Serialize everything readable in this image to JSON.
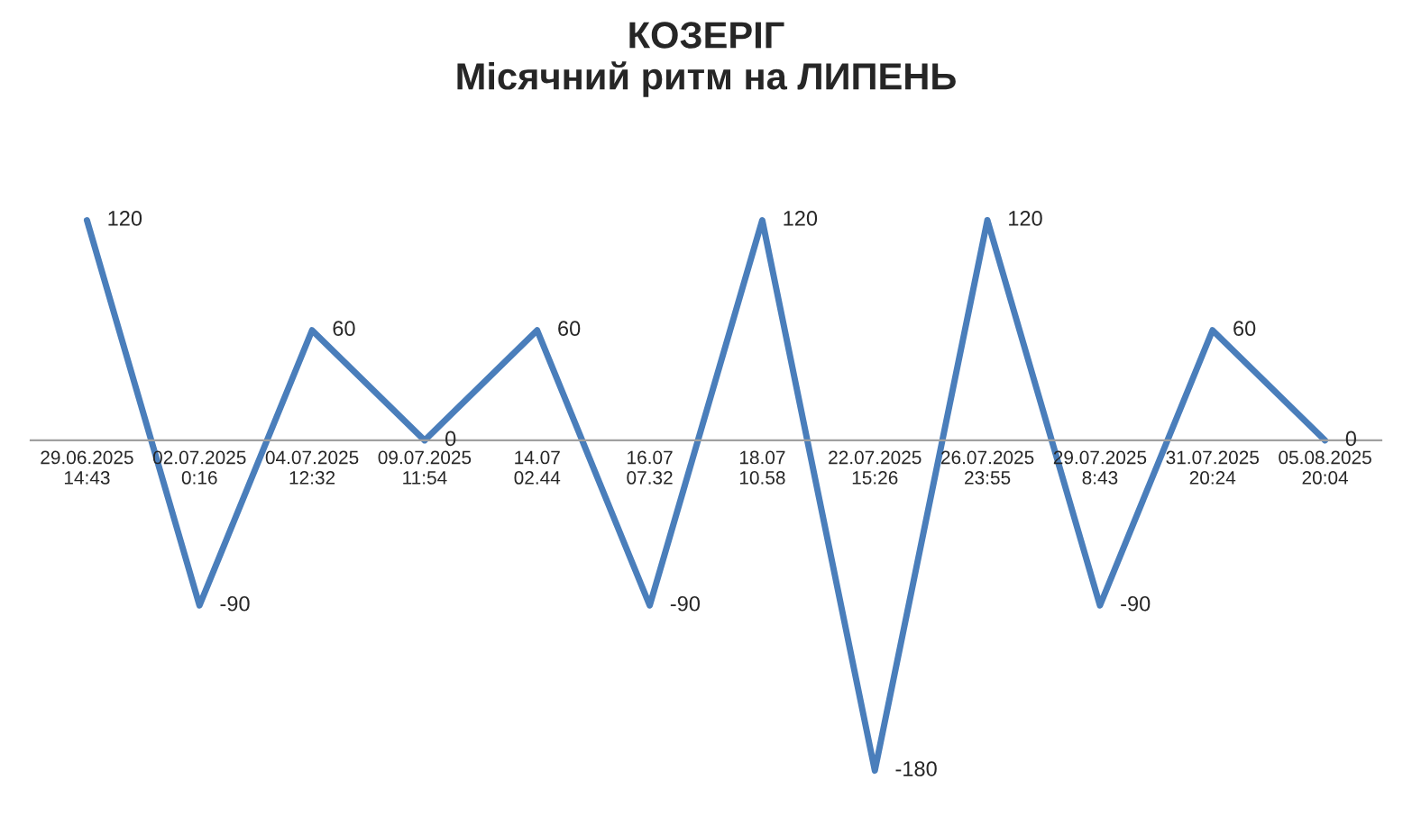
{
  "chart_data": {
    "type": "line",
    "title": "КОЗЕРІГ\nМісячний ритм на ЛИПЕНЬ",
    "categories": [
      "29.06.2025\n14:43",
      "02.07.2025\n0:16",
      "04.07.2025\n12:32",
      "09.07.2025\n11:54",
      "14.07\n02.44",
      "16.07\n07.32",
      "18.07\n10.58",
      "22.07.2025\n15:26",
      "26.07.2025\n23:55",
      "29.07.2025\n8:43",
      "31.07.2025\n20:24",
      "05.08.2025\n20:04"
    ],
    "series": [
      {
        "color": "#4a7ebb",
        "values": [
          120,
          -90,
          60,
          0,
          60,
          -90,
          120,
          -180,
          120,
          -90,
          60,
          0
        ]
      }
    ],
    "data_labels": true,
    "grid": false,
    "marker": "none",
    "line_style": "solid"
  }
}
